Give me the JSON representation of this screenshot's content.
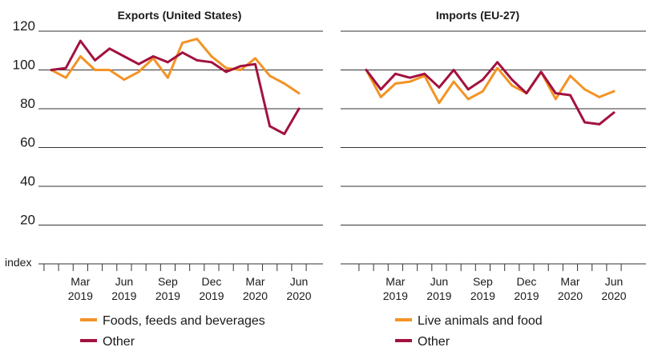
{
  "chart_data": [
    {
      "type": "line",
      "title": "Exports (United States)",
      "ylabel": "index",
      "ylim": [
        0,
        120
      ],
      "yticks": [
        20,
        40,
        60,
        80,
        100,
        120
      ],
      "grid": true,
      "x": [
        "Jan 2019",
        "Feb 2019",
        "Mar 2019",
        "Apr 2019",
        "May 2019",
        "Jun 2019",
        "Jul 2019",
        "Aug 2019",
        "Sep 2019",
        "Oct 2019",
        "Nov 2019",
        "Dec 2019",
        "Jan 2020",
        "Feb 2020",
        "Mar 2020",
        "Apr 2020",
        "May 2020",
        "Jun 2020"
      ],
      "xtick_labels": [
        {
          "index": 2,
          "month": "Mar",
          "year": "2019"
        },
        {
          "index": 5,
          "month": "Jun",
          "year": "2019"
        },
        {
          "index": 8,
          "month": "Sep",
          "year": "2019"
        },
        {
          "index": 11,
          "month": "Dec",
          "year": "2019"
        },
        {
          "index": 14,
          "month": "Mar",
          "year": "2020"
        },
        {
          "index": 17,
          "month": "Jun",
          "year": "2020"
        }
      ],
      "series": [
        {
          "name": "Foods, feeds and beverages",
          "color": "#F39325",
          "values": [
            100,
            96,
            107,
            100,
            100,
            95,
            99,
            106,
            96,
            114,
            116,
            107,
            101,
            100,
            106,
            97,
            93,
            88
          ]
        },
        {
          "name": "Other",
          "color": "#A2123F",
          "values": [
            100,
            101,
            115,
            105,
            111,
            107,
            103,
            107,
            104,
            109,
            105,
            104,
            99,
            102,
            103,
            71,
            67,
            80
          ]
        }
      ]
    },
    {
      "type": "line",
      "title": "Imports (EU-27)",
      "ylim": [
        0,
        120
      ],
      "yticks": [
        20,
        40,
        60,
        80,
        100,
        120
      ],
      "grid": true,
      "x": [
        "Jan 2019",
        "Feb 2019",
        "Mar 2019",
        "Apr 2019",
        "May 2019",
        "Jun 2019",
        "Jul 2019",
        "Aug 2019",
        "Sep 2019",
        "Oct 2019",
        "Nov 2019",
        "Dec 2019",
        "Jan 2020",
        "Feb 2020",
        "Mar 2020",
        "Apr 2020",
        "May 2020",
        "Jun 2020"
      ],
      "xtick_labels": [
        {
          "index": 2,
          "month": "Mar",
          "year": "2019"
        },
        {
          "index": 5,
          "month": "Jun",
          "year": "2019"
        },
        {
          "index": 8,
          "month": "Sep",
          "year": "2019"
        },
        {
          "index": 11,
          "month": "Dec",
          "year": "2019"
        },
        {
          "index": 14,
          "month": "Mar",
          "year": "2020"
        },
        {
          "index": 17,
          "month": "Jun",
          "year": "2020"
        }
      ],
      "series": [
        {
          "name": "Live animals and food",
          "color": "#F39325",
          "values": [
            100,
            86,
            93,
            94,
            97,
            83,
            94,
            85,
            89,
            101,
            92,
            88,
            99,
            85,
            97,
            90,
            86,
            89
          ]
        },
        {
          "name": "Other",
          "color": "#A2123F",
          "values": [
            100,
            90,
            98,
            96,
            98,
            91,
            100,
            90,
            95,
            104,
            95,
            88,
            99,
            88,
            87,
            73,
            72,
            78
          ]
        }
      ]
    }
  ]
}
